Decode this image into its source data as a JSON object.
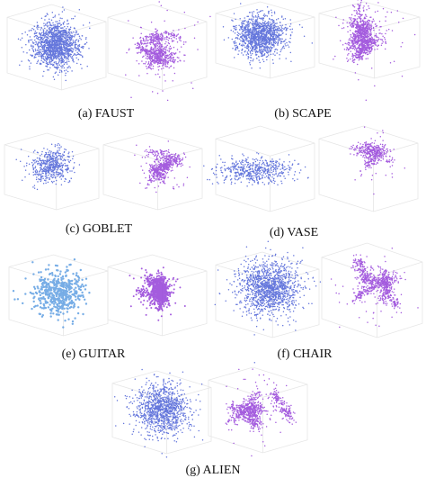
{
  "panels": [
    {
      "caption": "(a) FAUST"
    },
    {
      "caption": "(b) SCAPE"
    },
    {
      "caption": "(c) GOBLET"
    },
    {
      "caption": "(d) VASE"
    },
    {
      "caption": "(e) GUITAR"
    },
    {
      "caption": "(f) CHAIR"
    },
    {
      "caption": "(g) ALIEN"
    }
  ]
}
